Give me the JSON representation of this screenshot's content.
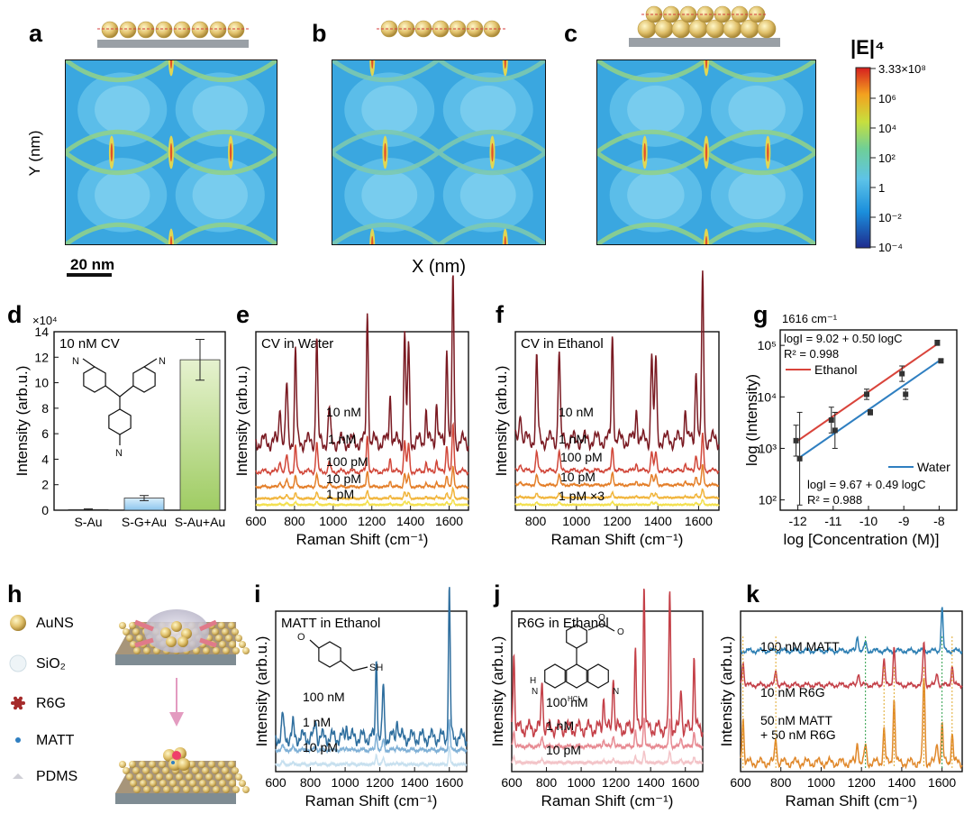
{
  "panel_letters": [
    "a",
    "b",
    "c",
    "d",
    "e",
    "f",
    "g",
    "h",
    "i",
    "j",
    "k"
  ],
  "field_maps": {
    "y_label": "Y (nm)",
    "x_label": "X (nm)",
    "scale_bar": "20 nm",
    "colorbar_title": "|E|⁴",
    "colorbar_ticks": [
      "3.33×10⁸",
      "10⁶",
      "10⁴",
      "10²",
      "1",
      "10⁻²",
      "10⁻⁴"
    ]
  },
  "chart_data": [
    {
      "panel": "d",
      "type": "bar",
      "annotation": "10 nM CV",
      "multiplier": "×10⁴",
      "categories": [
        "S-Au",
        "S-G+Au",
        "S-Au+Au"
      ],
      "values": [
        0.05,
        0.95,
        11.8
      ],
      "errors": [
        0.05,
        0.2,
        1.6
      ],
      "colors": [
        "#7fa6c7",
        "#a6d3f0",
        "#b4d98a"
      ],
      "ylabel": "Intensity (arb.u.)",
      "yticks": [
        "0",
        "2",
        "4",
        "6",
        "8",
        "10",
        "12",
        "14"
      ],
      "ylim": [
        0,
        14
      ]
    },
    {
      "panel": "e",
      "type": "line",
      "annotation": "CV in Water",
      "xlabel": "Raman Shift (cm⁻¹)",
      "ylabel": "Intensity (arb.u.)",
      "xticks": [
        "600",
        "800",
        "1000",
        "1200",
        "1400",
        "1600"
      ],
      "xlim": [
        600,
        1700
      ],
      "peaks": [
        [
          725,
          0.25
        ],
        [
          760,
          0.35
        ],
        [
          805,
          0.55
        ],
        [
          915,
          0.65
        ],
        [
          980,
          0.2
        ],
        [
          1177,
          0.8
        ],
        [
          1295,
          0.3
        ],
        [
          1370,
          0.7
        ],
        [
          1390,
          0.6
        ],
        [
          1480,
          0.2
        ],
        [
          1535,
          0.25
        ],
        [
          1588,
          0.6
        ],
        [
          1620,
          1.0
        ]
      ],
      "series": [
        {
          "name": "10 nM",
          "scale": 1.0,
          "color": "#7a1a22"
        },
        {
          "name": "1 nM",
          "scale": 0.28,
          "color": "#d1473a"
        },
        {
          "name": "100 pM",
          "scale": 0.12,
          "color": "#e47f2a"
        },
        {
          "name": "10 pM",
          "scale": 0.06,
          "color": "#f1b53c"
        },
        {
          "name": "1 pM",
          "scale": 0.03,
          "color": "#f3e04e"
        }
      ]
    },
    {
      "panel": "f",
      "type": "line",
      "annotation": "CV in Ethanol",
      "xlabel": "Raman Shift (cm⁻¹)",
      "ylabel": "Intensity (arb.u.)",
      "xticks": [
        "800",
        "1000",
        "1200",
        "1400",
        "1600"
      ],
      "xlim": [
        700,
        1700
      ],
      "peaks": [
        [
          725,
          0.2
        ],
        [
          805,
          0.5
        ],
        [
          915,
          0.55
        ],
        [
          1177,
          0.65
        ],
        [
          1295,
          0.2
        ],
        [
          1370,
          0.55
        ],
        [
          1390,
          0.5
        ],
        [
          1535,
          0.2
        ],
        [
          1588,
          0.45
        ],
        [
          1620,
          1.0
        ]
      ],
      "series": [
        {
          "name": "10 nM",
          "scale": 1.0,
          "color": "#7a1a22"
        },
        {
          "name": "1 nM",
          "scale": 0.22,
          "color": "#d1473a"
        },
        {
          "name": "100 pM",
          "scale": 0.12,
          "color": "#e47f2a"
        },
        {
          "name": "10 pM",
          "scale": 0.05,
          "color": "#f1b53c"
        },
        {
          "name": "1 pM ×3",
          "scale": 0.03,
          "color": "#f3e04e"
        }
      ]
    },
    {
      "panel": "g",
      "type": "scatter",
      "title": "1616 cm⁻¹",
      "xlabel": "log [Concentration (M)]",
      "ylabel": "log (Intensity)",
      "xticks": [
        "-12",
        "-11",
        "-10",
        "-9",
        "-8"
      ],
      "yticks": [
        "10²",
        "10³",
        "10⁴",
        "10⁵"
      ],
      "xlim": [
        -12.5,
        -7.5
      ],
      "ylim": [
        1.8,
        5.3
      ],
      "series": [
        {
          "name": "Ethanol",
          "color": "#d9443b",
          "fit": "logI = 9.02 + 0.50 logC",
          "r2": "R² = 0.998",
          "x": [
            -12,
            -11,
            -10,
            -9,
            -8
          ],
          "y": [
            3.15,
            3.55,
            4.05,
            4.45,
            5.05
          ],
          "err": [
            0.3,
            0.25,
            0.1,
            0.15,
            0.05
          ]
        },
        {
          "name": "Water",
          "color": "#2f7fc1",
          "fit": "logI = 9.67 + 0.49 logC",
          "r2": "R² = 0.988",
          "x": [
            -12,
            -11,
            -10,
            -9,
            -8
          ],
          "y": [
            2.8,
            3.35,
            3.7,
            4.05,
            4.7
          ],
          "err": [
            0.9,
            0.35,
            0.05,
            0.1,
            0.03
          ]
        }
      ]
    },
    {
      "panel": "i",
      "type": "line",
      "annotation": "MATT in Ethanol",
      "xlabel": "Raman Shift (cm⁻¹)",
      "ylabel": "Intensity (arb.u.)",
      "xticks": [
        "600",
        "800",
        "1000",
        "1200",
        "1400",
        "1600"
      ],
      "xlim": [
        600,
        1700
      ],
      "peaks": [
        [
          640,
          0.15
        ],
        [
          700,
          0.08
        ],
        [
          830,
          0.12
        ],
        [
          1010,
          0.1
        ],
        [
          1180,
          0.55
        ],
        [
          1220,
          0.35
        ],
        [
          1300,
          0.15
        ],
        [
          1600,
          1.0
        ]
      ],
      "series": [
        {
          "name": "100 nM",
          "scale": 1.0,
          "color": "#2e6e9e"
        },
        {
          "name": "1 nM",
          "scale": 0.2,
          "color": "#7fb0d6"
        },
        {
          "name": "10 pM",
          "scale": 0.12,
          "color": "#c7e0ef"
        }
      ]
    },
    {
      "panel": "j",
      "type": "line",
      "annotation": "R6G in Ethanol",
      "xlabel": "Raman Shift (cm⁻¹)",
      "ylabel": "Intensity (arb.u.)",
      "xticks": [
        "600",
        "800",
        "1000",
        "1200",
        "1400",
        "1600"
      ],
      "xlim": [
        600,
        1700
      ],
      "peaks": [
        [
          612,
          0.55
        ],
        [
          775,
          0.35
        ],
        [
          1130,
          0.25
        ],
        [
          1185,
          0.4
        ],
        [
          1312,
          0.55
        ],
        [
          1362,
          1.0
        ],
        [
          1510,
          0.95
        ],
        [
          1575,
          0.3
        ],
        [
          1650,
          0.5
        ]
      ],
      "series": [
        {
          "name": "100 nM",
          "scale": 1.0,
          "color": "#c44048"
        },
        {
          "name": "1 nM",
          "scale": 0.2,
          "color": "#e78a92"
        },
        {
          "name": "10 pM",
          "scale": 0.08,
          "color": "#f3c4c8"
        }
      ]
    },
    {
      "panel": "k",
      "type": "line",
      "xlabel": "Raman Shift (cm⁻¹)",
      "ylabel": "Intensity (arb.u.)",
      "xticks": [
        "600",
        "800",
        "1000",
        "1200",
        "1400",
        "1600"
      ],
      "xlim": [
        600,
        1700
      ],
      "series": [
        {
          "name": "100 nM MATT",
          "color": "#2e7fb3",
          "scale": 0.5,
          "peaks": [
            [
              1180,
              0.35
            ],
            [
              1220,
              0.2
            ],
            [
              1600,
              1.0
            ]
          ]
        },
        {
          "name": "10 nM R6G",
          "color": "#c44048",
          "scale": 0.5,
          "peaks": [
            [
              612,
              0.55
            ],
            [
              775,
              0.35
            ],
            [
              1185,
              0.3
            ],
            [
              1312,
              0.6
            ],
            [
              1362,
              0.9
            ],
            [
              1510,
              1.0
            ],
            [
              1575,
              0.3
            ],
            [
              1650,
              0.45
            ]
          ]
        },
        {
          "name": "50 nM MATT\n+ 50 nM R6G",
          "color": "#e0882b",
          "scale": 1.0,
          "peaks": [
            [
              612,
              0.55
            ],
            [
              775,
              0.3
            ],
            [
              1180,
              0.25
            ],
            [
              1220,
              0.2
            ],
            [
              1312,
              0.4
            ],
            [
              1362,
              0.75
            ],
            [
              1510,
              1.0
            ],
            [
              1575,
              0.25
            ],
            [
              1600,
              0.45
            ],
            [
              1650,
              0.35
            ]
          ]
        }
      ]
    }
  ],
  "legend_h": {
    "items": [
      {
        "label": "AuNS",
        "icon": "gold-sphere-icon"
      },
      {
        "label": "SiO₂",
        "icon": "silica-shell-icon"
      },
      {
        "label": "R6G",
        "icon": "r6g-molecule-icon"
      },
      {
        "label": "MATT",
        "icon": "matt-molecule-icon"
      },
      {
        "label": "PDMS",
        "icon": "pdms-icon"
      }
    ]
  }
}
